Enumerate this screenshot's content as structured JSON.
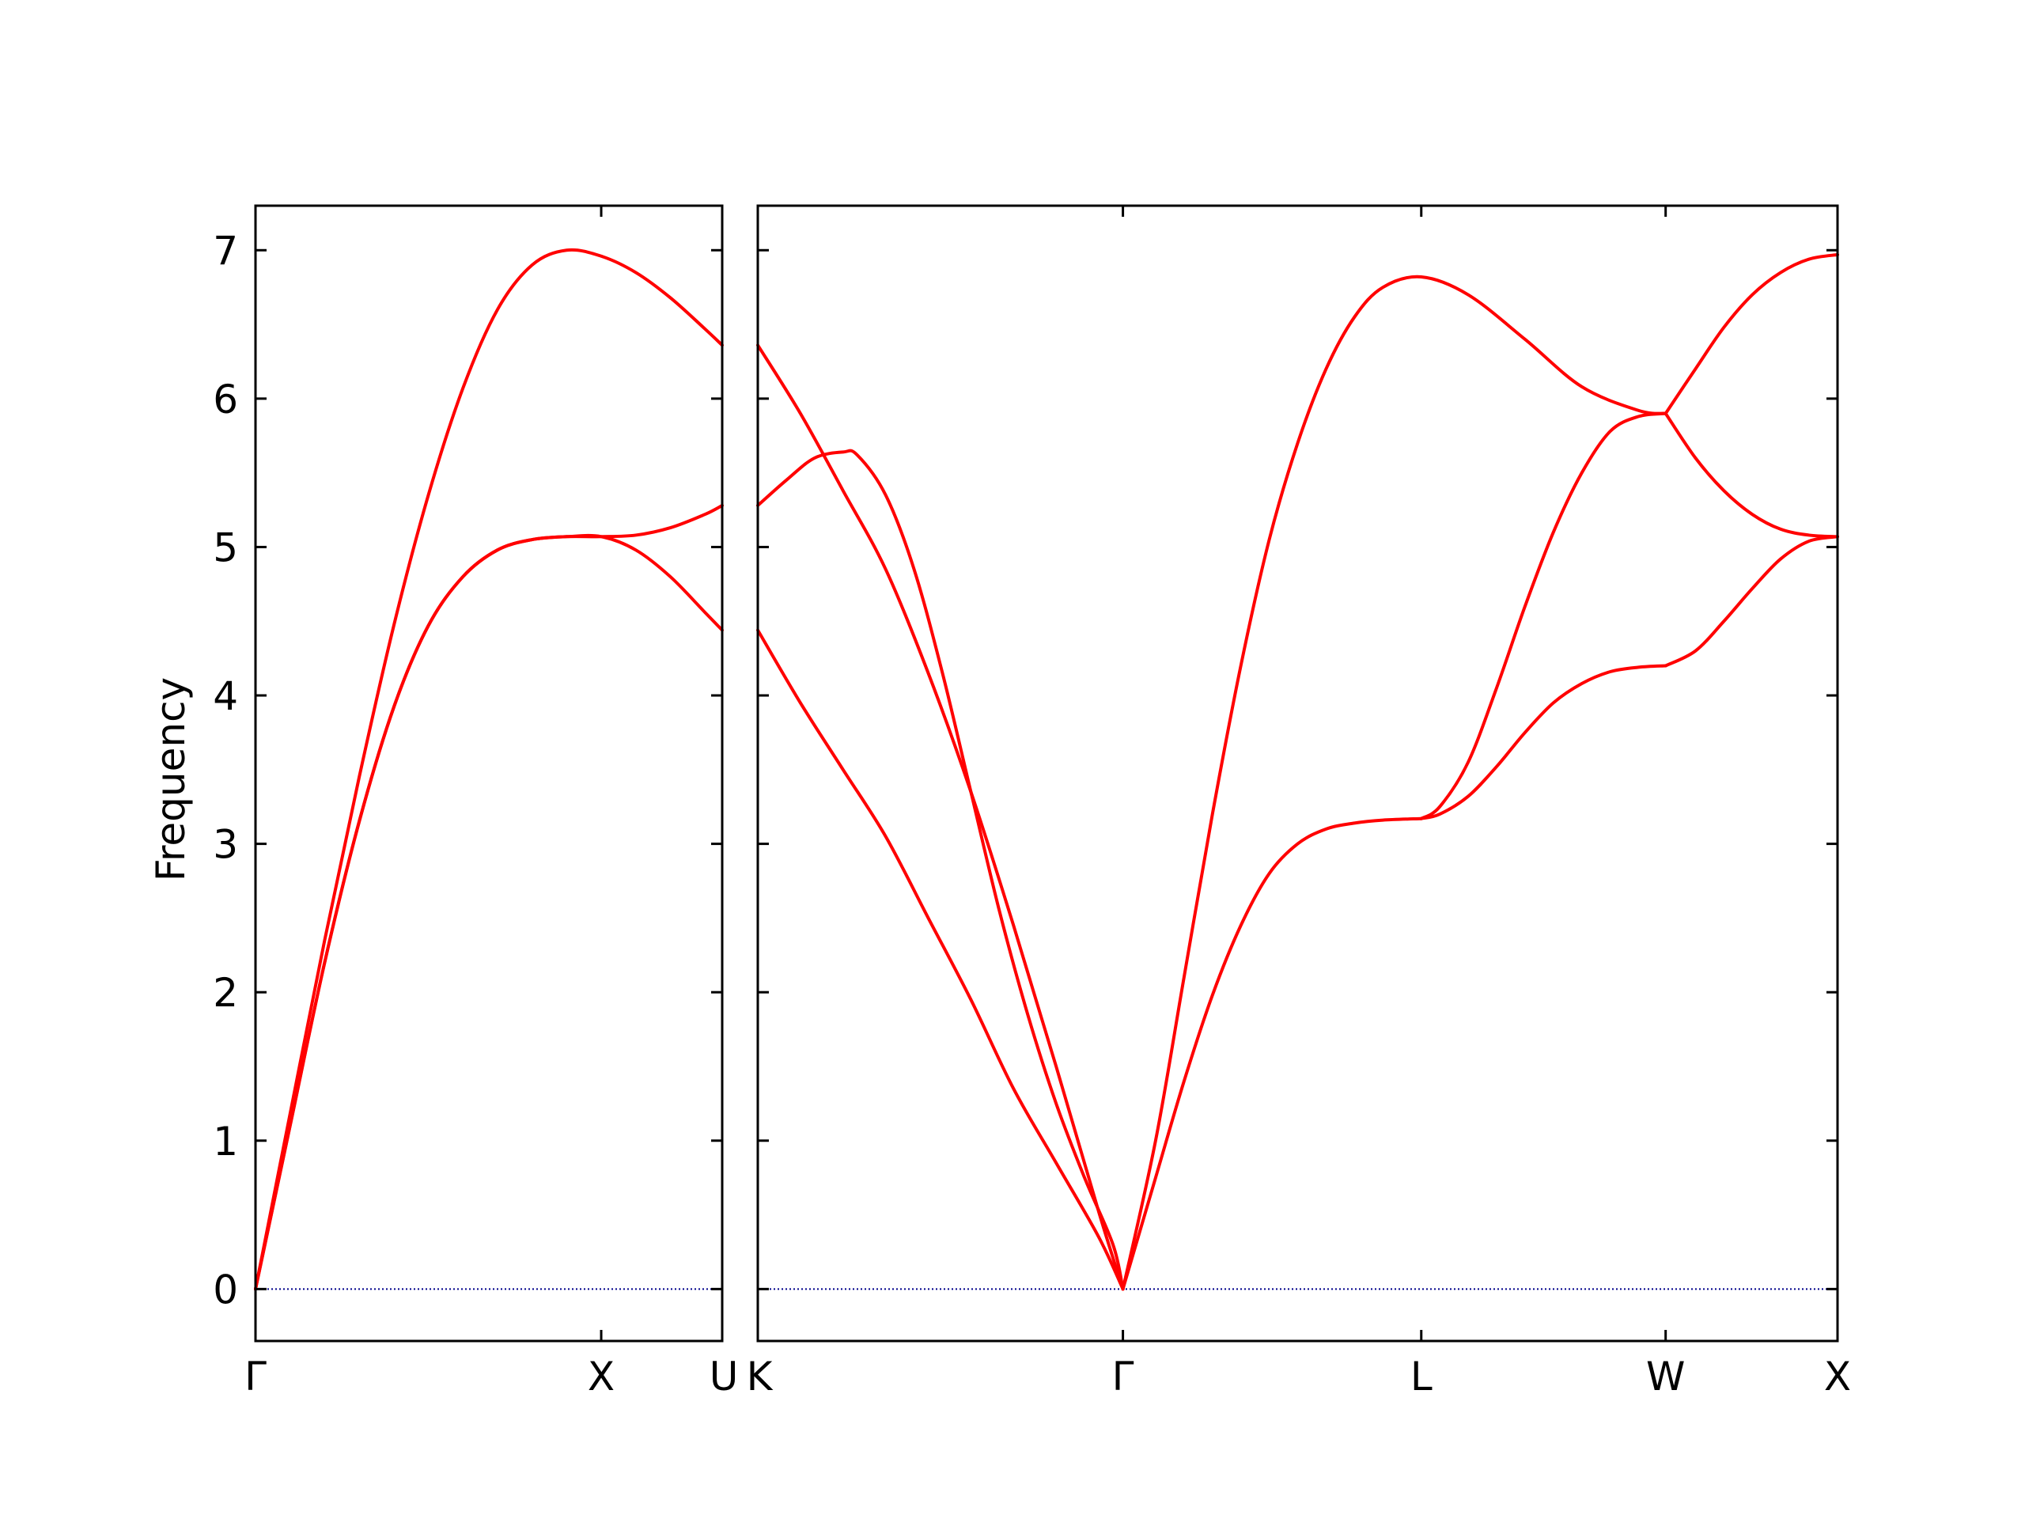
{
  "chart_data": {
    "type": "line",
    "ylabel": "Frequency",
    "ylim": [
      -0.35,
      7.3
    ],
    "yticks": [
      0,
      1,
      2,
      3,
      4,
      5,
      6,
      7
    ],
    "grid": false,
    "legend": "none",
    "colors": {
      "band": "#ff0000",
      "zero_line": "#00008b",
      "axes": "#000000"
    },
    "panels": [
      {
        "id": "left",
        "xlim": [
          0,
          1.35
        ],
        "kpoints": [
          {
            "label": "Γ",
            "x": 0
          },
          {
            "label": "X",
            "x": 1.0
          },
          {
            "label": "U",
            "x": 1.35
          }
        ],
        "series": [
          {
            "x": [
              0,
              0.1,
              0.2,
              0.3,
              0.4,
              0.5,
              0.6,
              0.7,
              0.8,
              0.9,
              1.0,
              1.1,
              1.2,
              1.3,
              1.35
            ],
            "y": [
              0,
              1.18,
              2.35,
              3.45,
              4.47,
              5.35,
              6.07,
              6.6,
              6.9,
              7.0,
              6.96,
              6.85,
              6.68,
              6.47,
              6.36
            ]
          },
          {
            "x": [
              0,
              0.1,
              0.2,
              0.3,
              0.4,
              0.5,
              0.6,
              0.7,
              0.8,
              0.9,
              1.0,
              1.1,
              1.2,
              1.3,
              1.35
            ],
            "y": [
              0,
              1.1,
              2.2,
              3.15,
              3.92,
              4.47,
              4.8,
              4.98,
              5.05,
              5.07,
              5.07,
              5.08,
              5.13,
              5.22,
              5.28
            ]
          },
          {
            "x": [
              0,
              0.1,
              0.2,
              0.3,
              0.4,
              0.5,
              0.6,
              0.7,
              0.8,
              0.9,
              1.0,
              1.1,
              1.2,
              1.3,
              1.35
            ],
            "y": [
              0,
              1.1,
              2.2,
              3.15,
              3.92,
              4.47,
              4.8,
              4.98,
              5.05,
              5.07,
              5.07,
              4.98,
              4.8,
              4.56,
              4.44
            ]
          }
        ]
      },
      {
        "id": "right",
        "xlim": [
          0,
          3.8
        ],
        "kpoints": [
          {
            "label": "K",
            "x": 0
          },
          {
            "label": "Γ",
            "x": 1.285
          },
          {
            "label": "L",
            "x": 2.335
          },
          {
            "label": "W",
            "x": 3.195
          },
          {
            "label": "X",
            "x": 3.8
          }
        ],
        "series": [
          {
            "x": [
              0,
              0.15,
              0.3,
              0.45,
              0.6,
              0.75,
              0.9,
              1.05,
              1.2,
              1.285
            ],
            "y": [
              6.36,
              5.9,
              5.38,
              4.85,
              4.15,
              3.35,
              2.45,
              1.5,
              0.52,
              0
            ]
          },
          {
            "x": [
              0,
              0.1,
              0.2,
              0.3,
              0.35,
              0.45,
              0.55,
              0.65,
              0.75,
              0.85,
              0.95,
              1.05,
              1.15,
              1.25,
              1.285
            ],
            "y": [
              5.28,
              5.45,
              5.6,
              5.64,
              5.62,
              5.35,
              4.85,
              4.15,
              3.35,
              2.55,
              1.85,
              1.25,
              0.75,
              0.3,
              0
            ],
            "mode": "steep-tail"
          },
          {
            "x": [
              0,
              0.15,
              0.3,
              0.45,
              0.6,
              0.75,
              0.9,
              1.05,
              1.2,
              1.285
            ],
            "y": [
              4.44,
              3.95,
              3.5,
              3.05,
              2.5,
              1.95,
              1.35,
              0.85,
              0.35,
              0
            ]
          },
          {
            "x": [
              1.285,
              1.4,
              1.5,
              1.6,
              1.7,
              1.8,
              1.9,
              2.0,
              2.1,
              2.2,
              2.335,
              2.5,
              2.7,
              2.9,
              3.1,
              3.195
            ],
            "y": [
              0,
              1.0,
              2.1,
              3.2,
              4.2,
              5.05,
              5.7,
              6.2,
              6.55,
              6.75,
              6.82,
              6.7,
              6.4,
              6.08,
              5.92,
              5.9
            ]
          },
          {
            "x": [
              1.285,
              1.4,
              1.5,
              1.6,
              1.7,
              1.8,
              1.9,
              2.0,
              2.1,
              2.2,
              2.335
            ],
            "y": [
              0,
              0.75,
              1.4,
              1.98,
              2.45,
              2.8,
              3.0,
              3.1,
              3.14,
              3.16,
              3.17
            ]
          },
          {
            "x": [
              2.335,
              2.4,
              2.5,
              2.6,
              2.7,
              2.8,
              2.9,
              3.0,
              3.1,
              3.195
            ],
            "y": [
              3.17,
              3.25,
              3.55,
              4.05,
              4.6,
              5.1,
              5.5,
              5.78,
              5.88,
              5.9
            ]
          },
          {
            "x": [
              2.335,
              2.4,
              2.5,
              2.6,
              2.7,
              2.8,
              2.9,
              3.0,
              3.1,
              3.195
            ],
            "y": [
              3.17,
              3.2,
              3.32,
              3.52,
              3.75,
              3.95,
              4.08,
              4.16,
              4.19,
              4.2
            ]
          },
          {
            "x": [
              3.195,
              3.3,
              3.4,
              3.5,
              3.6,
              3.7,
              3.8
            ],
            "y": [
              5.9,
              6.2,
              6.48,
              6.7,
              6.85,
              6.94,
              6.97
            ]
          },
          {
            "x": [
              3.195,
              3.3,
              3.4,
              3.5,
              3.6,
              3.7,
              3.8
            ],
            "y": [
              5.9,
              5.6,
              5.38,
              5.22,
              5.12,
              5.08,
              5.07
            ]
          },
          {
            "x": [
              3.195,
              3.3,
              3.4,
              3.5,
              3.6,
              3.7,
              3.8
            ],
            "y": [
              4.2,
              4.3,
              4.5,
              4.72,
              4.92,
              5.04,
              5.07
            ]
          }
        ]
      }
    ]
  }
}
